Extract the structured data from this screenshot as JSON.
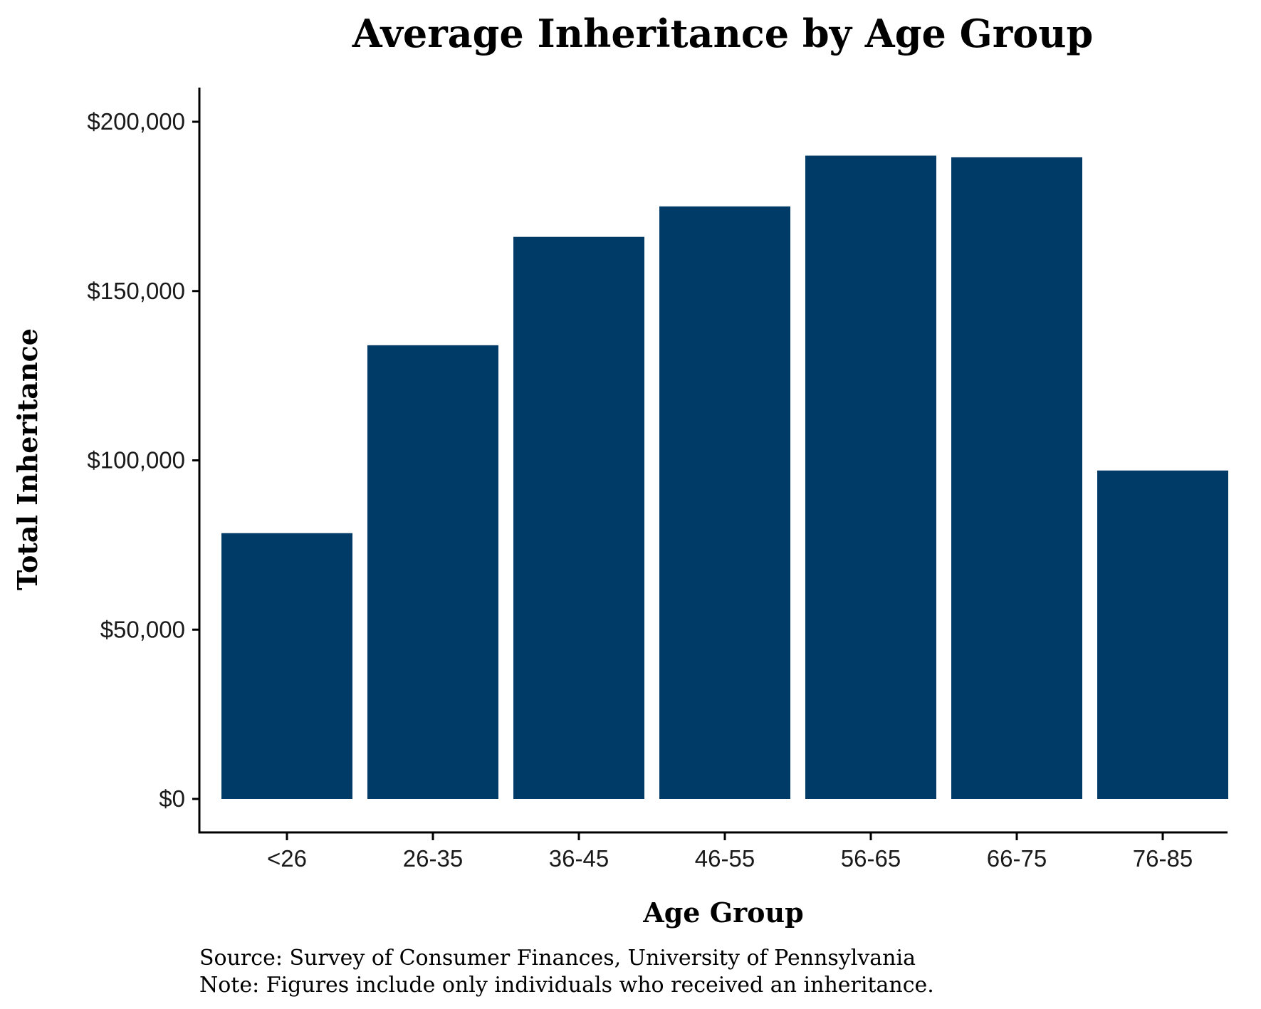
{
  "chart_data": {
    "type": "bar",
    "title": "Average Inheritance by Age Group",
    "xlabel": "Age Group",
    "ylabel": "Total Inheritance",
    "categories": [
      "<26",
      "26-35",
      "36-45",
      "46-55",
      "56-65",
      "66-75",
      "76-85"
    ],
    "values": [
      78500,
      134000,
      166000,
      175000,
      190000,
      189500,
      97000
    ],
    "ylim": [
      0,
      200000
    ],
    "yticks": [
      0,
      50000,
      100000,
      150000,
      200000
    ],
    "ytick_labels": [
      "$0",
      "$50,000",
      "$100,000",
      "$150,000",
      "$200,000"
    ],
    "grid": false,
    "bar_color": "#003a66"
  },
  "caption": {
    "source": "Source: Survey of Consumer Finances, University of Pennsylvania",
    "note": "Note: Figures include only individuals who received an inheritance."
  }
}
